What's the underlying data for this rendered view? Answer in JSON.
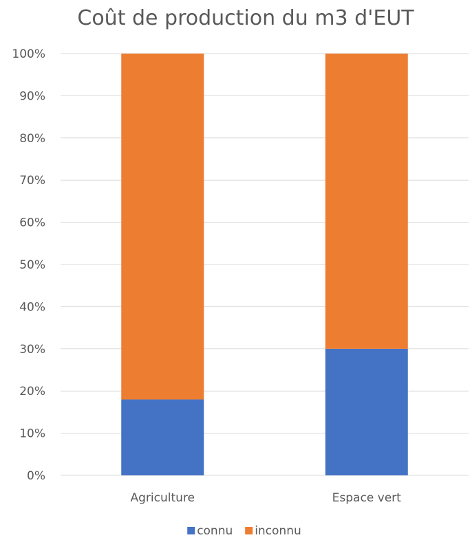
{
  "chart_data": {
    "type": "bar",
    "stacked": true,
    "title": "Coût de production du m3 d'EUT",
    "categories": [
      "Agriculture",
      "Espace vert"
    ],
    "series": [
      {
        "name": "connu",
        "values": [
          18,
          30
        ],
        "color": "#4472c4"
      },
      {
        "name": "inconnu",
        "values": [
          82,
          70
        ],
        "color": "#ed7d31"
      }
    ],
    "ylim": [
      0,
      100
    ],
    "yticks": [
      "0%",
      "10%",
      "20%",
      "30%",
      "40%",
      "50%",
      "60%",
      "70%",
      "80%",
      "90%",
      "100%"
    ],
    "grid": true,
    "legend": "bottom"
  }
}
